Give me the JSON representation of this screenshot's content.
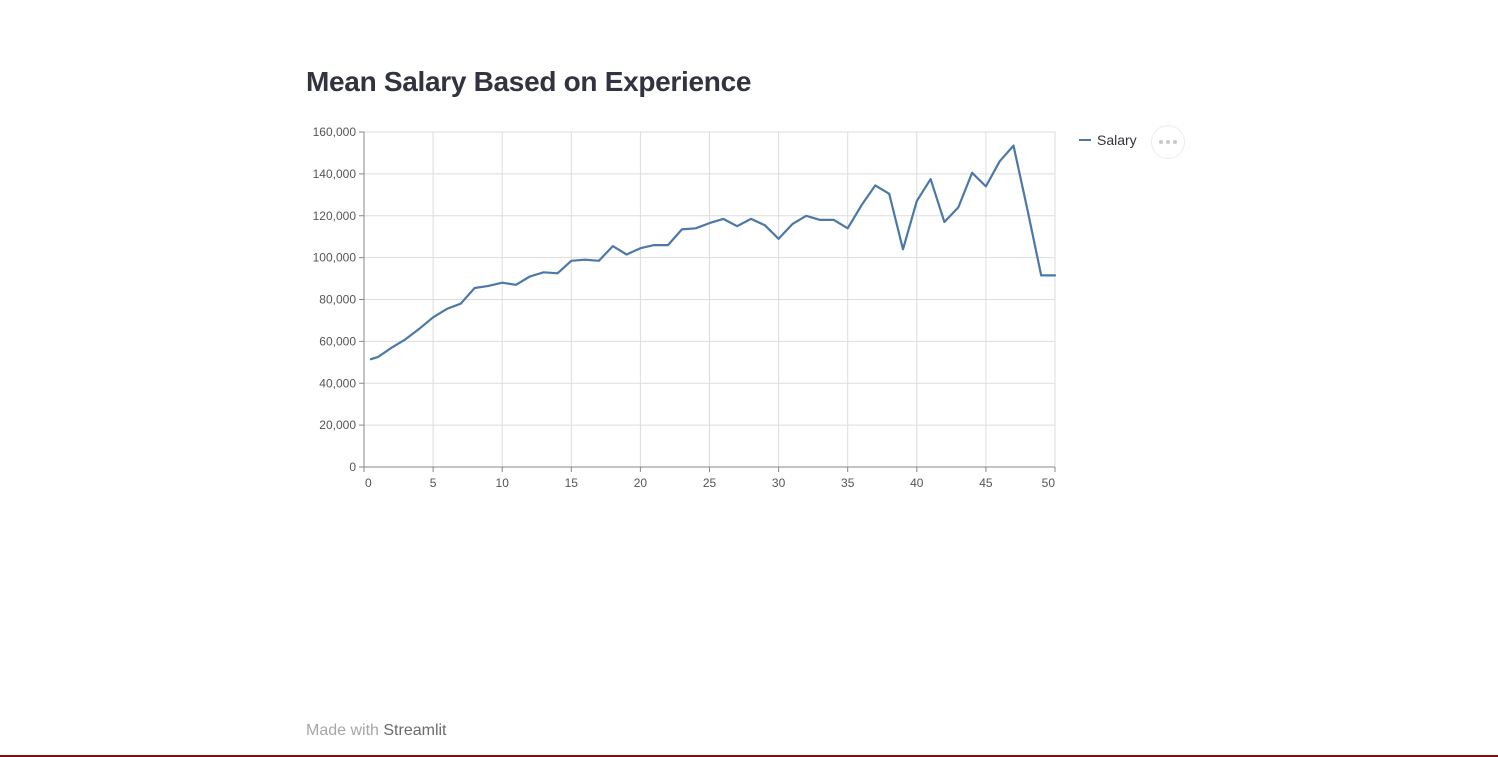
{
  "page": {
    "title": "Mean Salary Based on Experience"
  },
  "toolbar": {
    "more_icon": "ellipsis-icon"
  },
  "footer": {
    "prefix": "Made with",
    "brand": "Streamlit"
  },
  "colors": {
    "series": "#4c78a8",
    "grid": "#dddddd",
    "axis": "#888888",
    "footer_bar": "#7a1212"
  },
  "chart_data": {
    "type": "line",
    "title": "Mean Salary Based on Experience",
    "xlabel": "",
    "ylabel": "",
    "xlim": [
      0,
      50
    ],
    "ylim": [
      0,
      160000
    ],
    "x_ticks": [
      0,
      5,
      10,
      15,
      20,
      25,
      30,
      35,
      40,
      45,
      50
    ],
    "x_tick_labels": [
      "0",
      "5",
      "10",
      "15",
      "20",
      "25",
      "30",
      "35",
      "40",
      "45",
      "50"
    ],
    "y_ticks": [
      0,
      20000,
      40000,
      60000,
      80000,
      100000,
      120000,
      140000,
      160000
    ],
    "y_tick_labels": [
      "0",
      "20,000",
      "40,000",
      "60,000",
      "80,000",
      "100,000",
      "120,000",
      "140,000",
      "160,000"
    ],
    "grid": true,
    "legend": "top-right",
    "series": [
      {
        "name": "Salary",
        "x": [
          0.5,
          1,
          2,
          3,
          4,
          5,
          6,
          7,
          8,
          9,
          10,
          11,
          12,
          13,
          14,
          15,
          16,
          17,
          18,
          19,
          20,
          21,
          22,
          23,
          24,
          25,
          26,
          27,
          28,
          29,
          30,
          31,
          32,
          33,
          34,
          35,
          36,
          37,
          38,
          39,
          40,
          41,
          42,
          43,
          44,
          45,
          46,
          47,
          48,
          49,
          50
        ],
        "values": [
          51500,
          52500,
          57000,
          61000,
          66000,
          71500,
          75500,
          78000,
          85500,
          86500,
          88000,
          87000,
          91000,
          93000,
          92500,
          98500,
          99000,
          98500,
          105500,
          101500,
          104500,
          106000,
          106000,
          113500,
          114000,
          116500,
          118500,
          115000,
          118500,
          115500,
          109000,
          116000,
          120000,
          118000,
          118000,
          114000,
          125000,
          134500,
          130500,
          104000,
          127000,
          137500,
          117000,
          124000,
          140500,
          134000,
          146000,
          153500,
          123000,
          91500,
          91500
        ]
      }
    ]
  }
}
